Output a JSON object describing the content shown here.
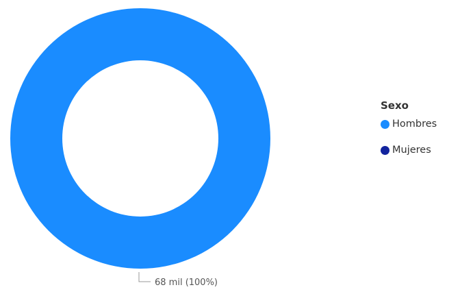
{
  "chart_data": {
    "type": "pie",
    "subtype": "donut",
    "legend_title": "Sexo",
    "legend_position": "right",
    "categories": [
      "Hombres",
      "Mujeres"
    ],
    "values": [
      68,
      0
    ],
    "unit": "mil",
    "colors": [
      "#1a8cff",
      "#12239e"
    ],
    "data_labels": [
      "68 mil (100%)"
    ]
  }
}
